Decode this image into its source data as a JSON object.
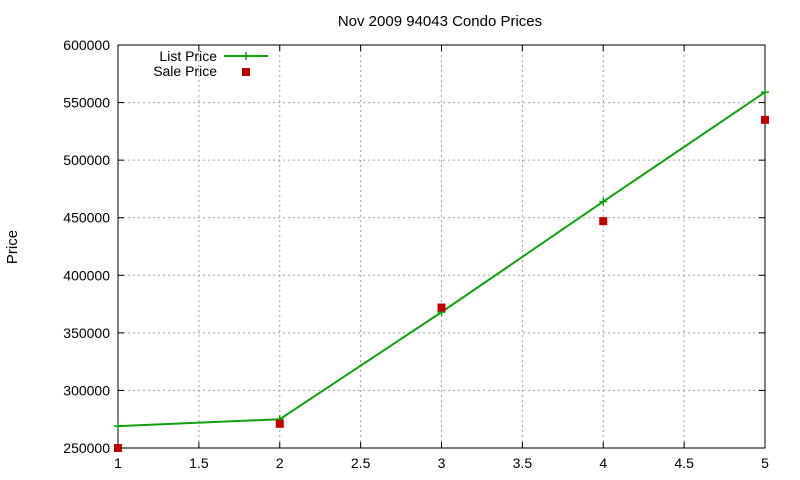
{
  "chart_data": {
    "type": "line",
    "title": "Nov 2009 94043 Condo Prices",
    "xlabel": "",
    "ylabel": "Price",
    "xlim": [
      1,
      5
    ],
    "ylim": [
      250000,
      600000
    ],
    "xticks": [
      "1",
      "1.5",
      "2",
      "2.5",
      "3",
      "3.5",
      "4",
      "4.5",
      "5"
    ],
    "xtick_values": [
      1,
      1.5,
      2,
      2.5,
      3,
      3.5,
      4,
      4.5,
      5
    ],
    "yticks": [
      "250000",
      "300000",
      "350000",
      "400000",
      "450000",
      "500000",
      "550000",
      "600000"
    ],
    "ytick_values": [
      250000,
      300000,
      350000,
      400000,
      450000,
      500000,
      550000,
      600000
    ],
    "grid": true,
    "legend_position": "top-left",
    "series": [
      {
        "name": "List Price",
        "style": "line-with-plus-markers",
        "color": "#11a011",
        "x": [
          1,
          2,
          3,
          4,
          5
        ],
        "y": [
          269000,
          275000,
          368000,
          464000,
          559000
        ]
      },
      {
        "name": "Sale Price",
        "style": "square-markers",
        "color": "#c00000",
        "x": [
          1,
          2,
          3,
          4,
          5
        ],
        "y": [
          250000,
          271000,
          372000,
          447000,
          535000
        ]
      }
    ]
  }
}
